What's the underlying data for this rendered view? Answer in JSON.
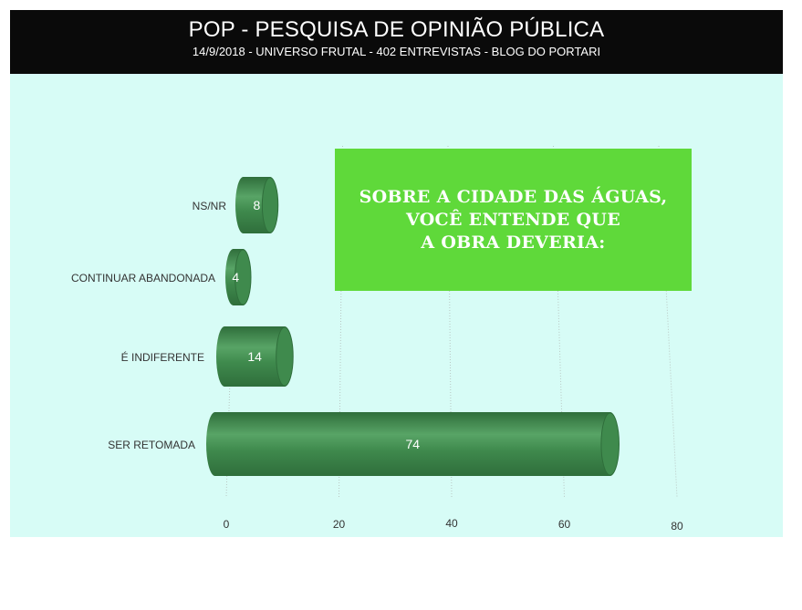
{
  "header": {
    "title": "POP - PESQUISA DE OPINIÃO PÚBLICA",
    "subtitle": "14/9/2018 - UNIVERSO FRUTAL - 402 ENTREVISTAS - BLOG DO PORTARI"
  },
  "callout": {
    "lines": [
      "SOBRE A CIDADE DAS ÁGUAS,",
      "VOCÊ ENTENDE QUE",
      "A OBRA DEVERIA:"
    ]
  },
  "colors": {
    "bar": "#3f8a4d",
    "bar_dark": "#2f6e3b",
    "bar_light": "#58a466",
    "plot_background": "#d7fcf6",
    "callout_background": "#5fd93a",
    "header_background": "#0a0a0a"
  },
  "chart_data": {
    "type": "bar",
    "orientation": "horizontal",
    "categories": [
      "NS/NR",
      "CONTINUAR ABANDONADA",
      "É INDIFERENTE",
      "SER RETOMADA"
    ],
    "values": [
      8,
      4,
      14,
      74
    ],
    "data_labels": [
      "8",
      "4",
      "14",
      "74"
    ],
    "xlim": [
      0,
      80
    ],
    "xticks": [
      0,
      20,
      40,
      60,
      80
    ],
    "xtick_labels": [
      "0",
      "20",
      "40",
      "60",
      "80"
    ],
    "grid": "vertical",
    "bar_style": "3d-cylinder"
  }
}
